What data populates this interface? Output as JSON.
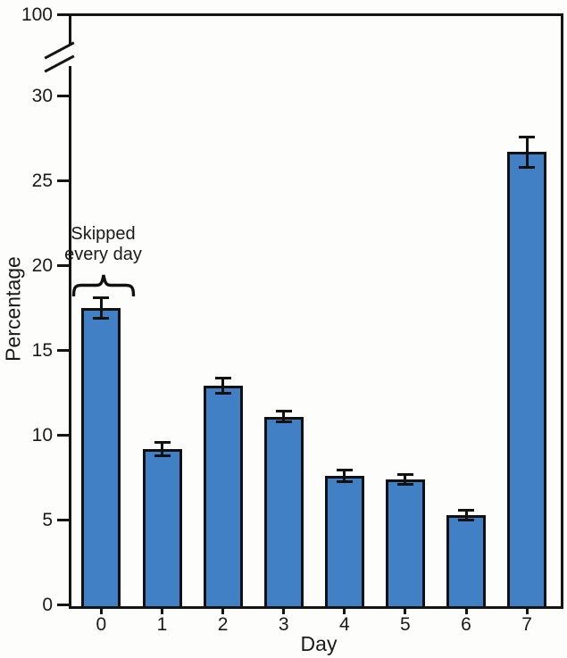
{
  "chart_data": {
    "type": "bar",
    "title": "",
    "xlabel": "Day",
    "ylabel": "Percentage",
    "categories": [
      "0",
      "1",
      "2",
      "3",
      "4",
      "5",
      "6",
      "7"
    ],
    "values": [
      17.5,
      9.2,
      12.9,
      11.1,
      7.6,
      7.4,
      5.3,
      26.7
    ],
    "error_bar_halfwidths": [
      0.6,
      0.4,
      0.45,
      0.3,
      0.35,
      0.3,
      0.3,
      0.9
    ],
    "y_ticks": [
      0,
      5,
      10,
      15,
      20,
      25,
      30
    ],
    "y_axis_break_top_label": "100",
    "ylim": [
      0,
      100
    ],
    "axis_break_between": [
      30,
      100
    ],
    "grid": false,
    "legend": null,
    "bar_color": "#4180c4",
    "bar_border_color": "#111111",
    "annotation": {
      "line1": "Skipped",
      "line2": "every day",
      "target_category": "0"
    }
  }
}
